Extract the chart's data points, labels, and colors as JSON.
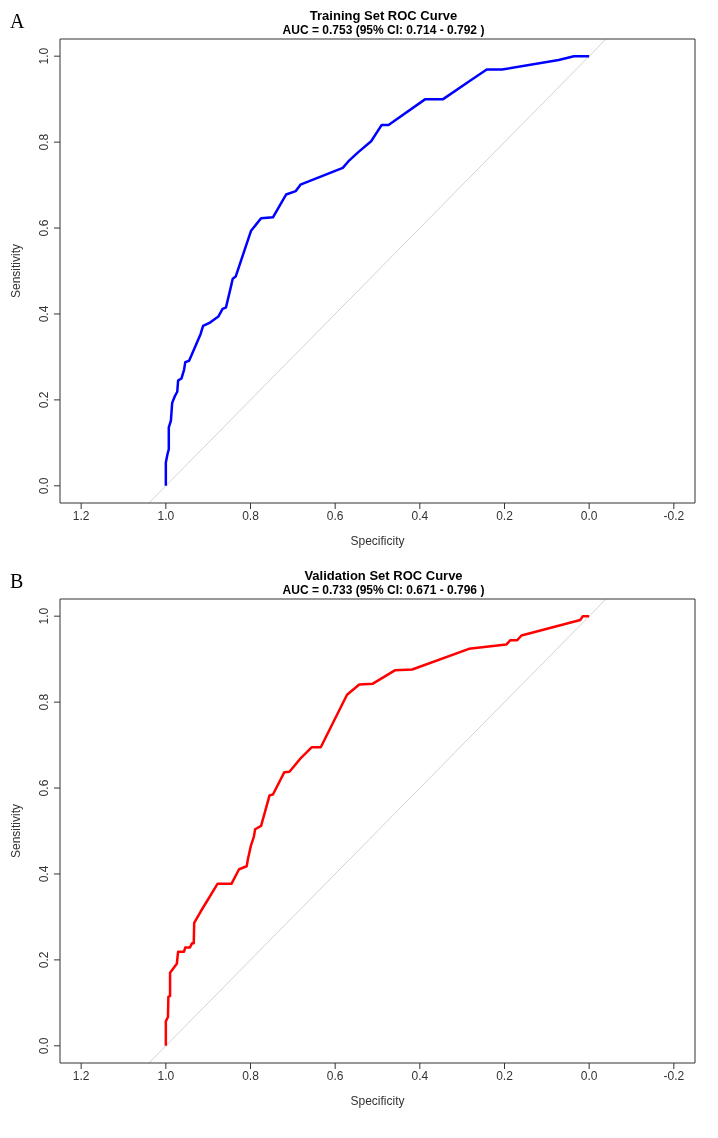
{
  "chart_data": [
    {
      "type": "line",
      "title": "Training Set ROC Curve",
      "subtitle": "AUC = 0.753  (95% CI: 0.714 - 0.792 )",
      "xlabel": "Specificity",
      "ylabel": "Sensitivity",
      "annotations": [
        "A"
      ],
      "xlim": [
        1.25,
        -0.25
      ],
      "ylim": [
        -0.04,
        1.04
      ],
      "xticks": [
        {
          "value": 1.2,
          "label": "1.2"
        },
        {
          "value": 1,
          "label": "1.0"
        },
        {
          "value": 0.8,
          "label": "0.8"
        },
        {
          "value": 0.6,
          "label": "0.6"
        },
        {
          "value": 0.4,
          "label": "0.4"
        },
        {
          "value": 0.2,
          "label": "0.2"
        },
        {
          "value": 0,
          "label": "0.0"
        },
        {
          "value": -0.2,
          "label": "-0.2"
        }
      ],
      "yticks": [
        {
          "value": 0,
          "label": "0.0"
        },
        {
          "value": 0.2,
          "label": "0.2"
        },
        {
          "value": 0.4,
          "label": "0.4"
        },
        {
          "value": 0.6,
          "label": "0.6"
        },
        {
          "value": 0.8,
          "label": "0.8"
        },
        {
          "value": 1,
          "label": "1.0"
        }
      ],
      "series": [
        {
          "color": "#d3d3d3",
          "x": [
            1.04,
            -0.04
          ],
          "values": [
            -0.04,
            1.04
          ]
        },
        {
          "color": "#0000ff",
          "x": [
            1,
            1,
            0.996,
            0.993,
            0.993,
            0.988,
            0.985,
            0.979,
            0.973,
            0.971,
            0.963,
            0.957,
            0.954,
            0.945,
            0.918,
            0.912,
            0.897,
            0.876,
            0.866,
            0.858,
            0.848,
            0.842,
            0.835,
            0.799,
            0.775,
            0.747,
            0.716,
            0.693,
            0.682,
            0.582,
            0.569,
            0.546,
            0.515,
            0.49,
            0.474,
            0.387,
            0.345,
            0.284,
            0.242,
            0.206,
            0.072,
            0.036,
            0
          ],
          "values": [
            0,
            0.054,
            0.074,
            0.085,
            0.136,
            0.152,
            0.193,
            0.208,
            0.219,
            0.245,
            0.25,
            0.27,
            0.288,
            0.291,
            0.353,
            0.372,
            0.379,
            0.394,
            0.412,
            0.415,
            0.456,
            0.482,
            0.487,
            0.593,
            0.623,
            0.625,
            0.678,
            0.686,
            0.701,
            0.74,
            0.755,
            0.776,
            0.802,
            0.84,
            0.84,
            0.9,
            0.9,
            0.941,
            0.969,
            0.969,
            0.991,
            1,
            1
          ]
        }
      ]
    },
    {
      "type": "line",
      "title": "Validation Set ROC Curve",
      "subtitle": "AUC = 0.733  (95% CI: 0.671 - 0.796 )",
      "xlabel": "Specificity",
      "ylabel": "Sensitivity",
      "annotations": [
        "B"
      ],
      "xlim": [
        1.25,
        -0.25
      ],
      "ylim": [
        -0.04,
        1.04
      ],
      "xticks": [
        {
          "value": 1.2,
          "label": "1.2"
        },
        {
          "value": 1,
          "label": "1.0"
        },
        {
          "value": 0.8,
          "label": "0.8"
        },
        {
          "value": 0.6,
          "label": "0.6"
        },
        {
          "value": 0.4,
          "label": "0.4"
        },
        {
          "value": 0.2,
          "label": "0.2"
        },
        {
          "value": 0,
          "label": "0.0"
        },
        {
          "value": -0.2,
          "label": "-0.2"
        }
      ],
      "yticks": [
        {
          "value": 0,
          "label": "0.0"
        },
        {
          "value": 0.2,
          "label": "0.2"
        },
        {
          "value": 0.4,
          "label": "0.4"
        },
        {
          "value": 0.6,
          "label": "0.6"
        },
        {
          "value": 0.8,
          "label": "0.8"
        },
        {
          "value": 1,
          "label": "1.0"
        }
      ],
      "series": [
        {
          "color": "#d3d3d3",
          "x": [
            1.04,
            -0.04
          ],
          "values": [
            -0.04,
            1.04
          ]
        },
        {
          "color": "#ff0000",
          "x": [
            1,
            1,
            0.995,
            0.994,
            0.99,
            0.99,
            0.974,
            0.971,
            0.957,
            0.954,
            0.943,
            0.938,
            0.934,
            0.933,
            0.918,
            0.878,
            0.845,
            0.827,
            0.809,
            0.806,
            0.799,
            0.792,
            0.789,
            0.775,
            0.755,
            0.747,
            0.72,
            0.708,
            0.68,
            0.655,
            0.634,
            0.572,
            0.543,
            0.511,
            0.459,
            0.418,
            0.284,
            0.196,
            0.186,
            0.17,
            0.16,
            0.021,
            0.015,
            0
          ],
          "values": [
            0,
            0.057,
            0.067,
            0.114,
            0.116,
            0.17,
            0.191,
            0.219,
            0.219,
            0.229,
            0.229,
            0.239,
            0.239,
            0.286,
            0.312,
            0.377,
            0.377,
            0.411,
            0.418,
            0.435,
            0.466,
            0.487,
            0.504,
            0.512,
            0.583,
            0.585,
            0.637,
            0.638,
            0.671,
            0.695,
            0.695,
            0.817,
            0.841,
            0.843,
            0.874,
            0.876,
            0.924,
            0.934,
            0.944,
            0.944,
            0.955,
            0.991,
            1,
            1
          ]
        }
      ]
    }
  ]
}
